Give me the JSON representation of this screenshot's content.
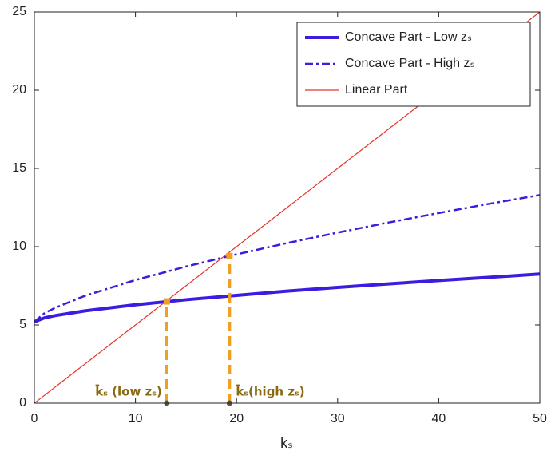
{
  "chart_data": {
    "type": "line",
    "x_label": "kₛ",
    "x": [
      0,
      1,
      2,
      5,
      10,
      15,
      20,
      25,
      30,
      35,
      40,
      45,
      50
    ],
    "series": [
      {
        "name": "Concave Part - Low zₛ",
        "color": "#3a1de0",
        "style": "solid",
        "width": 4,
        "values": [
          5.2,
          5.45,
          5.59,
          5.9,
          6.29,
          6.61,
          6.89,
          7.16,
          7.4,
          7.62,
          7.84,
          8.04,
          8.25
        ]
      },
      {
        "name": "Concave Part - High zₛ",
        "color": "#3a1de0",
        "style": "dashdot",
        "width": 2.5,
        "values": [
          5.2,
          5.75,
          6.08,
          6.86,
          7.87,
          8.73,
          9.51,
          10.23,
          10.9,
          11.54,
          12.15,
          12.74,
          13.3
        ]
      },
      {
        "name": "Linear Part",
        "color": "#e8352a",
        "style": "solid",
        "width": 1.2,
        "values": [
          0,
          0.5,
          1,
          2.5,
          5,
          7.5,
          10,
          12.5,
          15,
          17.5,
          20,
          22.5,
          25
        ]
      }
    ],
    "annotations": [
      {
        "x": 13.1,
        "y": 6.5,
        "label": "k̄ₛ (low zₛ)"
      },
      {
        "x": 19.3,
        "y": 9.4,
        "label": "k̄ₛ(high zₛ)"
      }
    ],
    "annotation_color": "#f0a020",
    "xlim": [
      0,
      50
    ],
    "xticks": [
      0,
      10,
      20,
      30,
      40,
      50
    ],
    "ylim": [
      0,
      25
    ],
    "yticks": [
      0,
      5,
      10,
      15,
      20,
      25
    ],
    "legend": "upper right"
  }
}
